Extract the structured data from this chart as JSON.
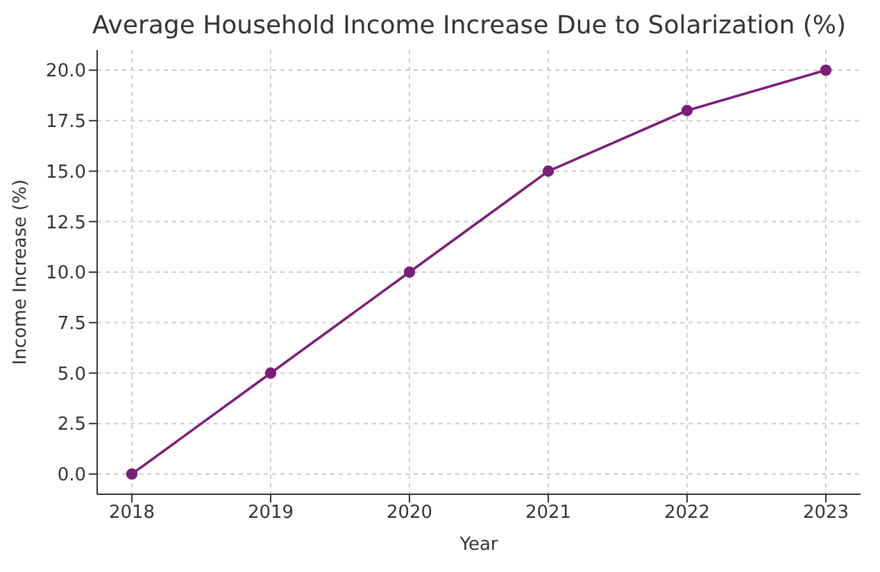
{
  "chart_data": {
    "type": "line",
    "title": "Average Household Income Increase Due to Solarization (%)",
    "xlabel": "Year",
    "ylabel": "Income Increase (%)",
    "x": [
      2018,
      2019,
      2020,
      2021,
      2022,
      2023
    ],
    "series": [
      {
        "color": "#7b1e7a",
        "values": [
          0,
          5,
          10,
          15,
          18,
          20
        ]
      }
    ],
    "xlim": [
      2017.75,
      2023.25
    ],
    "xticks": [
      2018,
      2019,
      2020,
      2021,
      2022,
      2023
    ],
    "ylim": [
      -1,
      21
    ],
    "yticks": [
      {
        "value": 0,
        "label": "0.0"
      },
      {
        "value": 2.5,
        "label": "2.5"
      },
      {
        "value": 5,
        "label": "5.0"
      },
      {
        "value": 7.5,
        "label": "7.5"
      },
      {
        "value": 10,
        "label": "10.0"
      },
      {
        "value": 12.5,
        "label": "12.5"
      },
      {
        "value": 15,
        "label": "15.0"
      },
      {
        "value": 17.5,
        "label": "17.5"
      },
      {
        "value": 20,
        "label": "20.0"
      }
    ],
    "grid": true,
    "marker": "circle",
    "line_style": "solid",
    "legend": false
  }
}
